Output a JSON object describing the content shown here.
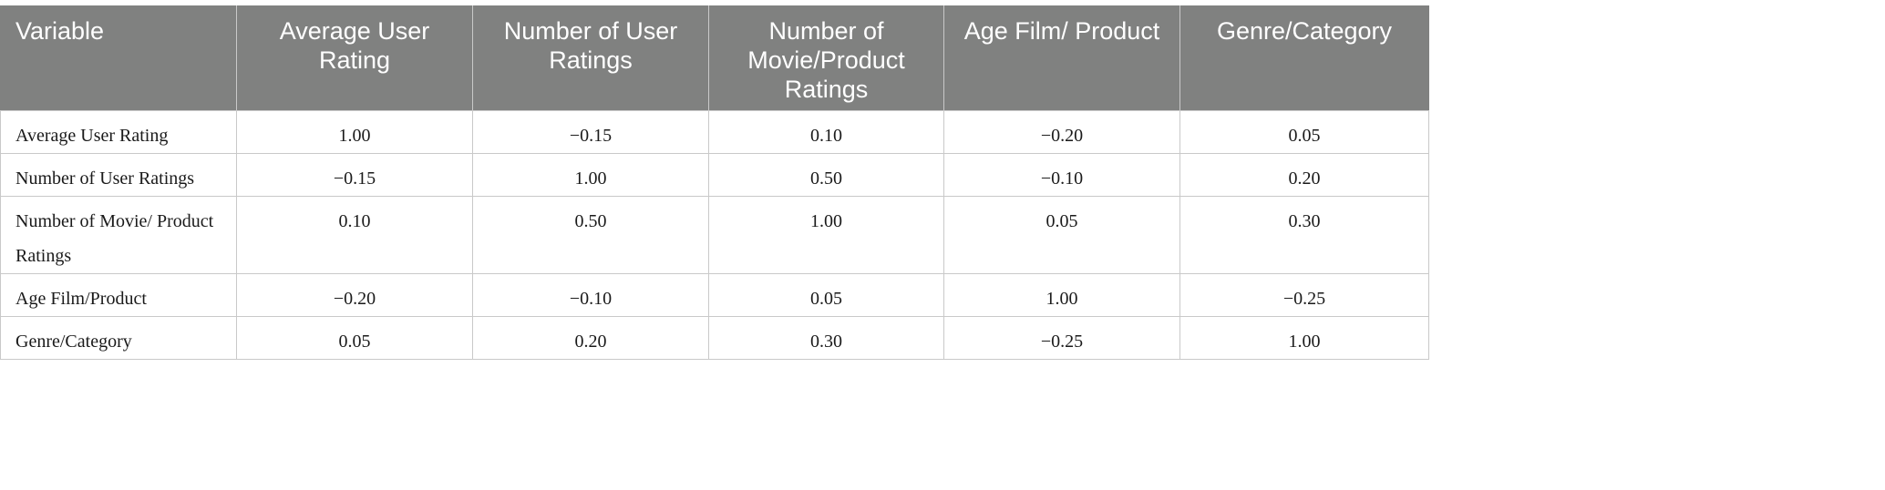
{
  "table": {
    "headers": [
      "Variable",
      "Average User Rating",
      "Number of User Ratings",
      "Number of Movie/Product Ratings",
      "Age Film/ Product",
      "Genre/Category"
    ],
    "rows": [
      {
        "label": "Average User Rating",
        "values": [
          "1.00",
          "−0.15",
          "0.10",
          "−0.20",
          "0.05"
        ]
      },
      {
        "label": "Number of User Ratings",
        "values": [
          "−0.15",
          "1.00",
          "0.50",
          "−0.10",
          "0.20"
        ]
      },
      {
        "label": "Number of Movie/ Product Ratings",
        "values": [
          "0.10",
          "0.50",
          "1.00",
          "0.05",
          "0.30"
        ]
      },
      {
        "label": "Age Film/Product",
        "values": [
          "−0.20",
          "−0.10",
          "0.05",
          "1.00",
          "−0.25"
        ]
      },
      {
        "label": "Genre/Category",
        "values": [
          "0.05",
          "0.20",
          "0.30",
          "−0.25",
          "1.00"
        ]
      }
    ]
  },
  "colors": {
    "header_background": "#808180",
    "header_text": "#ffffff",
    "grid_lines": "#c9c9c9",
    "body_text": "#1a1a1a"
  }
}
